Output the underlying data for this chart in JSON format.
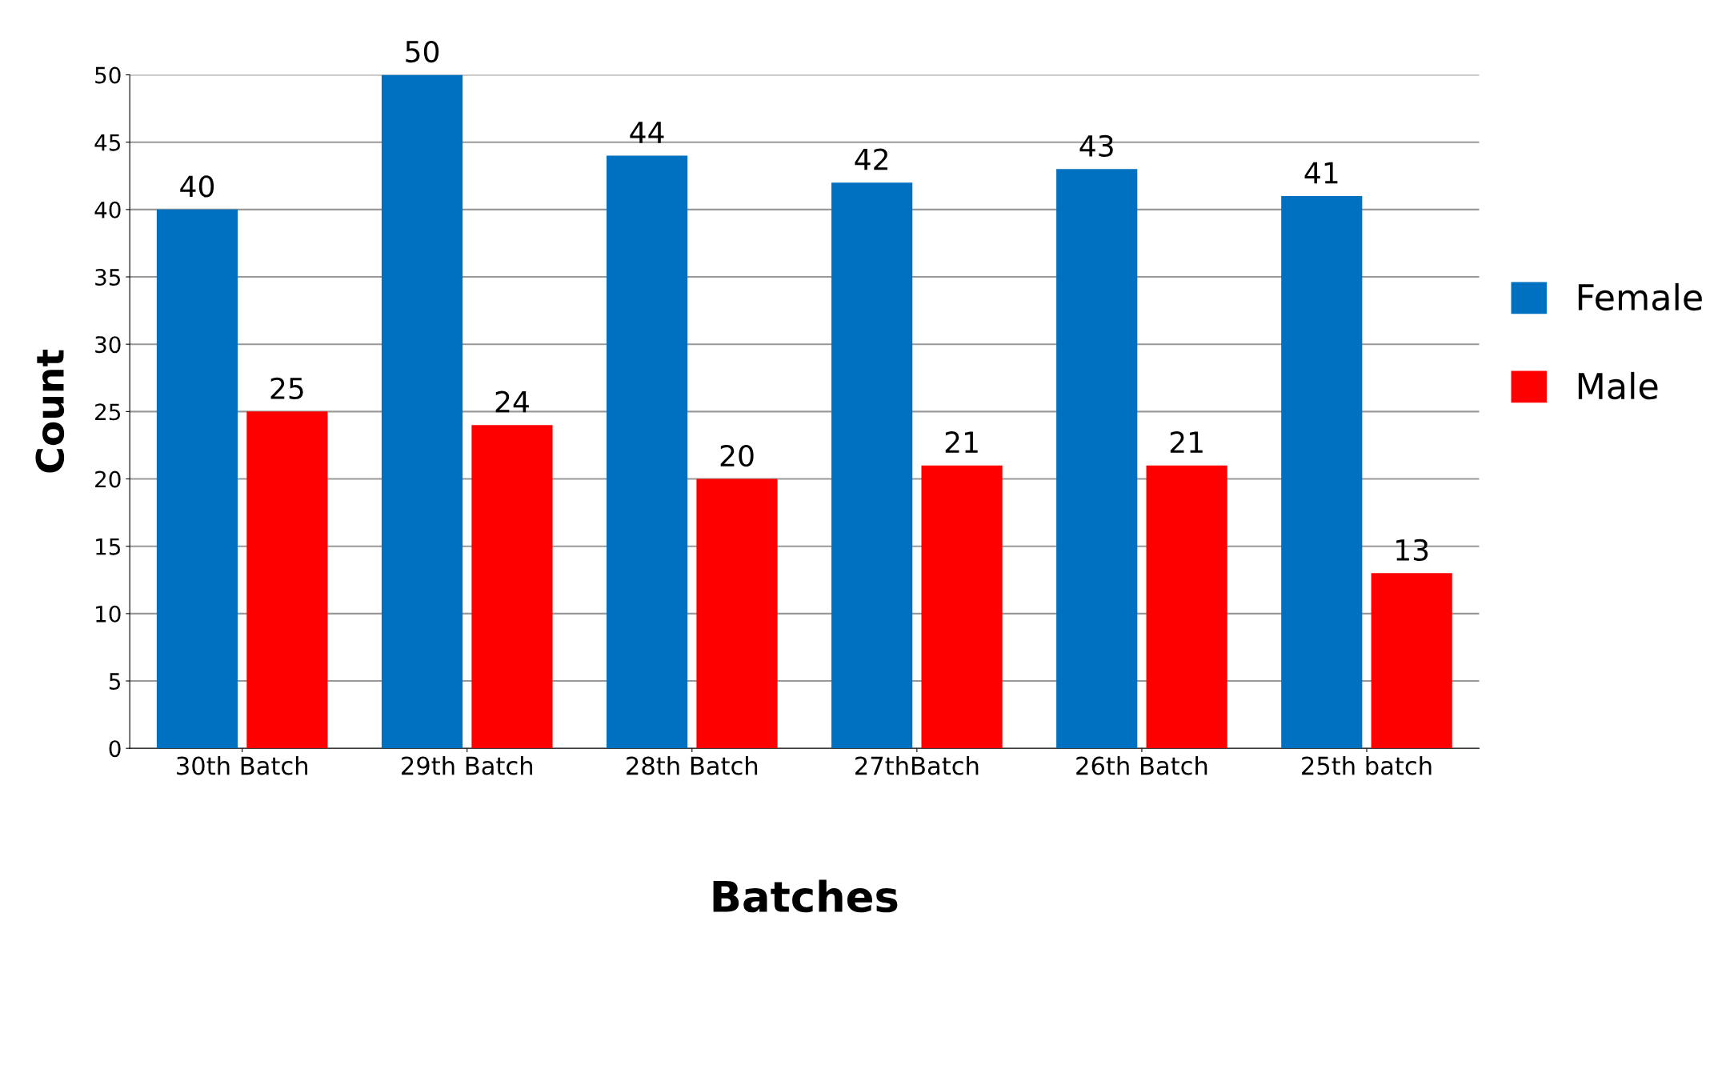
{
  "chart_data": {
    "type": "bar",
    "xlabel": "Batches",
    "ylabel": "Count",
    "categories": [
      "30th Batch",
      "29th Batch",
      "28th Batch",
      "27thBatch",
      "26th Batch",
      "25th batch"
    ],
    "series": [
      {
        "name": "Female",
        "color": "#0070c0",
        "values": [
          40,
          50,
          44,
          42,
          43,
          41
        ]
      },
      {
        "name": "Male",
        "color": "#ff0000",
        "values": [
          25,
          24,
          20,
          21,
          21,
          13
        ]
      }
    ],
    "ylim": [
      0,
      50
    ],
    "yticks": [
      0,
      5,
      10,
      15,
      20,
      25,
      30,
      35,
      40,
      45,
      50
    ],
    "grid": "y",
    "legend": "right",
    "data_labels": true
  }
}
